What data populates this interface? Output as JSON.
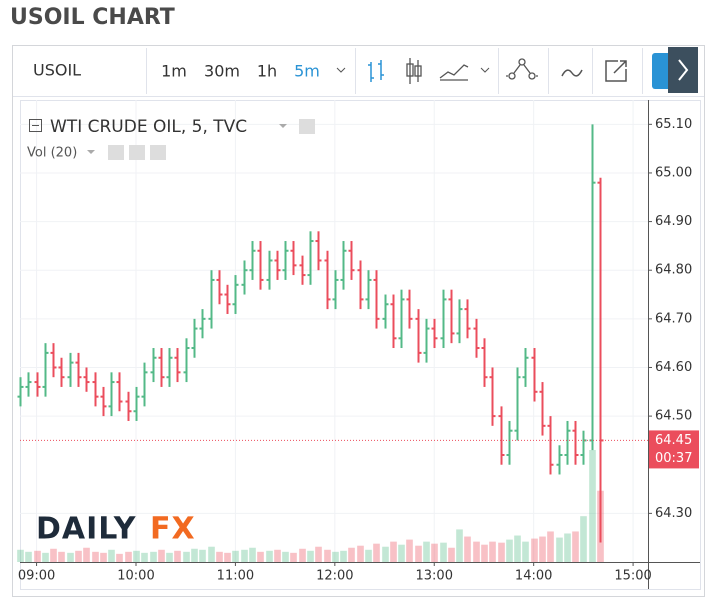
{
  "chart_data": {
    "type": "ohlc",
    "title": "USOIL CHART",
    "symbol": "USOIL",
    "intervals": [
      "1m",
      "30m",
      "1h",
      "5m"
    ],
    "active_interval": "5m",
    "legend": "WTI CRUDE OIL, 5, TVC",
    "volume_label": "Vol (20)",
    "watermark": [
      "DAILY",
      "FX"
    ],
    "up_color": "#53b987",
    "down_color": "#eb4d5c",
    "x": [
      "08:50",
      "08:55",
      "09:00",
      "09:05",
      "09:10",
      "09:15",
      "09:20",
      "09:25",
      "09:30",
      "09:35",
      "09:40",
      "09:45",
      "09:50",
      "09:55",
      "10:00",
      "10:05",
      "10:10",
      "10:15",
      "10:20",
      "10:25",
      "10:30",
      "10:35",
      "10:40",
      "10:45",
      "10:50",
      "10:55",
      "11:00",
      "11:05",
      "11:10",
      "11:15",
      "11:20",
      "11:25",
      "11:30",
      "11:35",
      "11:40",
      "11:45",
      "11:50",
      "11:55",
      "12:00",
      "12:05",
      "12:10",
      "12:15",
      "12:20",
      "12:25",
      "12:30",
      "12:35",
      "12:40",
      "12:45",
      "12:50",
      "12:55",
      "13:00",
      "13:05",
      "13:10",
      "13:15",
      "13:20",
      "13:25",
      "13:30",
      "13:35",
      "13:40",
      "13:45",
      "13:50",
      "13:55",
      "14:00",
      "14:05",
      "14:10",
      "14:15",
      "14:20",
      "14:25",
      "14:30",
      "14:35",
      "14:40"
    ],
    "open": [
      64.54,
      64.56,
      64.57,
      64.56,
      64.63,
      64.6,
      64.58,
      64.61,
      64.58,
      64.57,
      64.54,
      64.52,
      64.57,
      64.53,
      64.51,
      64.54,
      64.59,
      64.62,
      64.58,
      64.62,
      64.59,
      64.64,
      64.68,
      64.7,
      64.78,
      64.75,
      64.73,
      64.77,
      64.8,
      64.84,
      64.78,
      64.82,
      64.8,
      64.84,
      64.81,
      64.79,
      64.86,
      64.82,
      64.74,
      64.78,
      64.84,
      64.8,
      64.74,
      64.78,
      64.7,
      64.73,
      64.66,
      64.74,
      64.7,
      64.63,
      64.68,
      64.66,
      64.74,
      64.67,
      64.72,
      64.68,
      64.64,
      64.58,
      64.5,
      64.42,
      64.47,
      64.58,
      64.62,
      64.55,
      64.48,
      64.4,
      64.42,
      64.47,
      64.42,
      64.45,
      64.98
    ],
    "high": [
      64.58,
      64.59,
      64.59,
      64.65,
      64.65,
      64.62,
      64.63,
      64.63,
      64.6,
      64.59,
      64.56,
      64.59,
      64.59,
      64.55,
      64.56,
      64.61,
      64.64,
      64.64,
      64.64,
      64.64,
      64.66,
      64.7,
      64.72,
      64.8,
      64.8,
      64.77,
      64.79,
      64.82,
      64.86,
      64.86,
      64.84,
      64.84,
      64.86,
      64.86,
      64.83,
      64.88,
      64.88,
      64.84,
      64.8,
      64.86,
      64.86,
      64.82,
      64.8,
      64.8,
      64.75,
      64.75,
      64.76,
      64.76,
      64.72,
      64.7,
      64.7,
      64.76,
      64.76,
      64.74,
      64.74,
      64.7,
      64.66,
      64.6,
      64.52,
      64.49,
      64.6,
      64.64,
      64.64,
      64.57,
      64.5,
      64.44,
      64.49,
      64.49,
      64.47,
      65.1,
      64.99
    ],
    "low": [
      64.52,
      64.54,
      64.54,
      64.54,
      64.58,
      64.56,
      64.56,
      64.56,
      64.55,
      64.52,
      64.5,
      64.5,
      64.51,
      64.49,
      64.49,
      64.52,
      64.57,
      64.56,
      64.56,
      64.57,
      64.57,
      64.62,
      64.66,
      64.68,
      64.73,
      64.71,
      64.71,
      64.75,
      64.78,
      64.76,
      64.76,
      64.78,
      64.78,
      64.79,
      64.77,
      64.77,
      64.8,
      64.72,
      64.72,
      64.76,
      64.78,
      64.72,
      64.72,
      64.68,
      64.68,
      64.64,
      64.64,
      64.68,
      64.61,
      64.61,
      64.64,
      64.64,
      64.65,
      64.65,
      64.66,
      64.62,
      64.56,
      64.48,
      64.4,
      64.4,
      64.45,
      64.56,
      64.53,
      64.46,
      64.38,
      64.38,
      64.4,
      64.4,
      64.4,
      64.43,
      64.24
    ],
    "close": [
      64.56,
      64.57,
      64.56,
      64.63,
      64.6,
      64.58,
      64.61,
      64.58,
      64.57,
      64.54,
      64.52,
      64.57,
      64.53,
      64.51,
      64.54,
      64.59,
      64.62,
      64.58,
      64.62,
      64.59,
      64.64,
      64.68,
      64.7,
      64.78,
      64.75,
      64.73,
      64.77,
      64.8,
      64.84,
      64.78,
      64.82,
      64.8,
      64.84,
      64.81,
      64.79,
      64.86,
      64.82,
      64.74,
      64.78,
      64.84,
      64.8,
      64.74,
      64.78,
      64.7,
      64.73,
      64.66,
      64.74,
      64.7,
      64.63,
      64.68,
      64.66,
      64.74,
      64.67,
      64.72,
      64.68,
      64.64,
      64.58,
      64.5,
      64.42,
      64.47,
      64.58,
      64.62,
      64.55,
      64.48,
      64.4,
      64.42,
      64.47,
      64.42,
      64.45,
      64.98,
      64.45
    ],
    "volume": [
      120,
      100,
      110,
      90,
      130,
      100,
      90,
      110,
      140,
      100,
      90,
      120,
      80,
      100,
      110,
      90,
      100,
      120,
      90,
      110,
      100,
      130,
      120,
      150,
      100,
      90,
      110,
      120,
      140,
      100,
      110,
      120,
      100,
      90,
      130,
      110,
      150,
      120,
      100,
      110,
      140,
      160,
      120,
      180,
      150,
      200,
      170,
      220,
      160,
      200,
      180,
      190,
      140,
      320,
      250,
      200,
      170,
      200,
      190,
      220,
      260,
      200,
      230,
      250,
      300,
      240,
      280,
      300,
      450,
      1100,
      700
    ],
    "xlim": [
      "08:50",
      "15:09"
    ],
    "xticks": [
      "09:00",
      "10:00",
      "11:00",
      "12:00",
      "13:00",
      "14:00",
      "15:00"
    ],
    "ylim": [
      64.2,
      65.15
    ],
    "yticks": [
      {
        "value": 64.3,
        "label": "64.30"
      },
      {
        "value": 64.5,
        "label": "64.50"
      },
      {
        "value": 64.6,
        "label": "64.60"
      },
      {
        "value": 64.7,
        "label": "64.70"
      },
      {
        "value": 64.8,
        "label": "64.80"
      },
      {
        "value": 64.9,
        "label": "64.90"
      },
      {
        "value": 65.0,
        "label": "65.00"
      },
      {
        "value": 65.1,
        "label": "65.10"
      }
    ],
    "grid": true,
    "last_price": 64.45,
    "countdown": "00:37"
  }
}
